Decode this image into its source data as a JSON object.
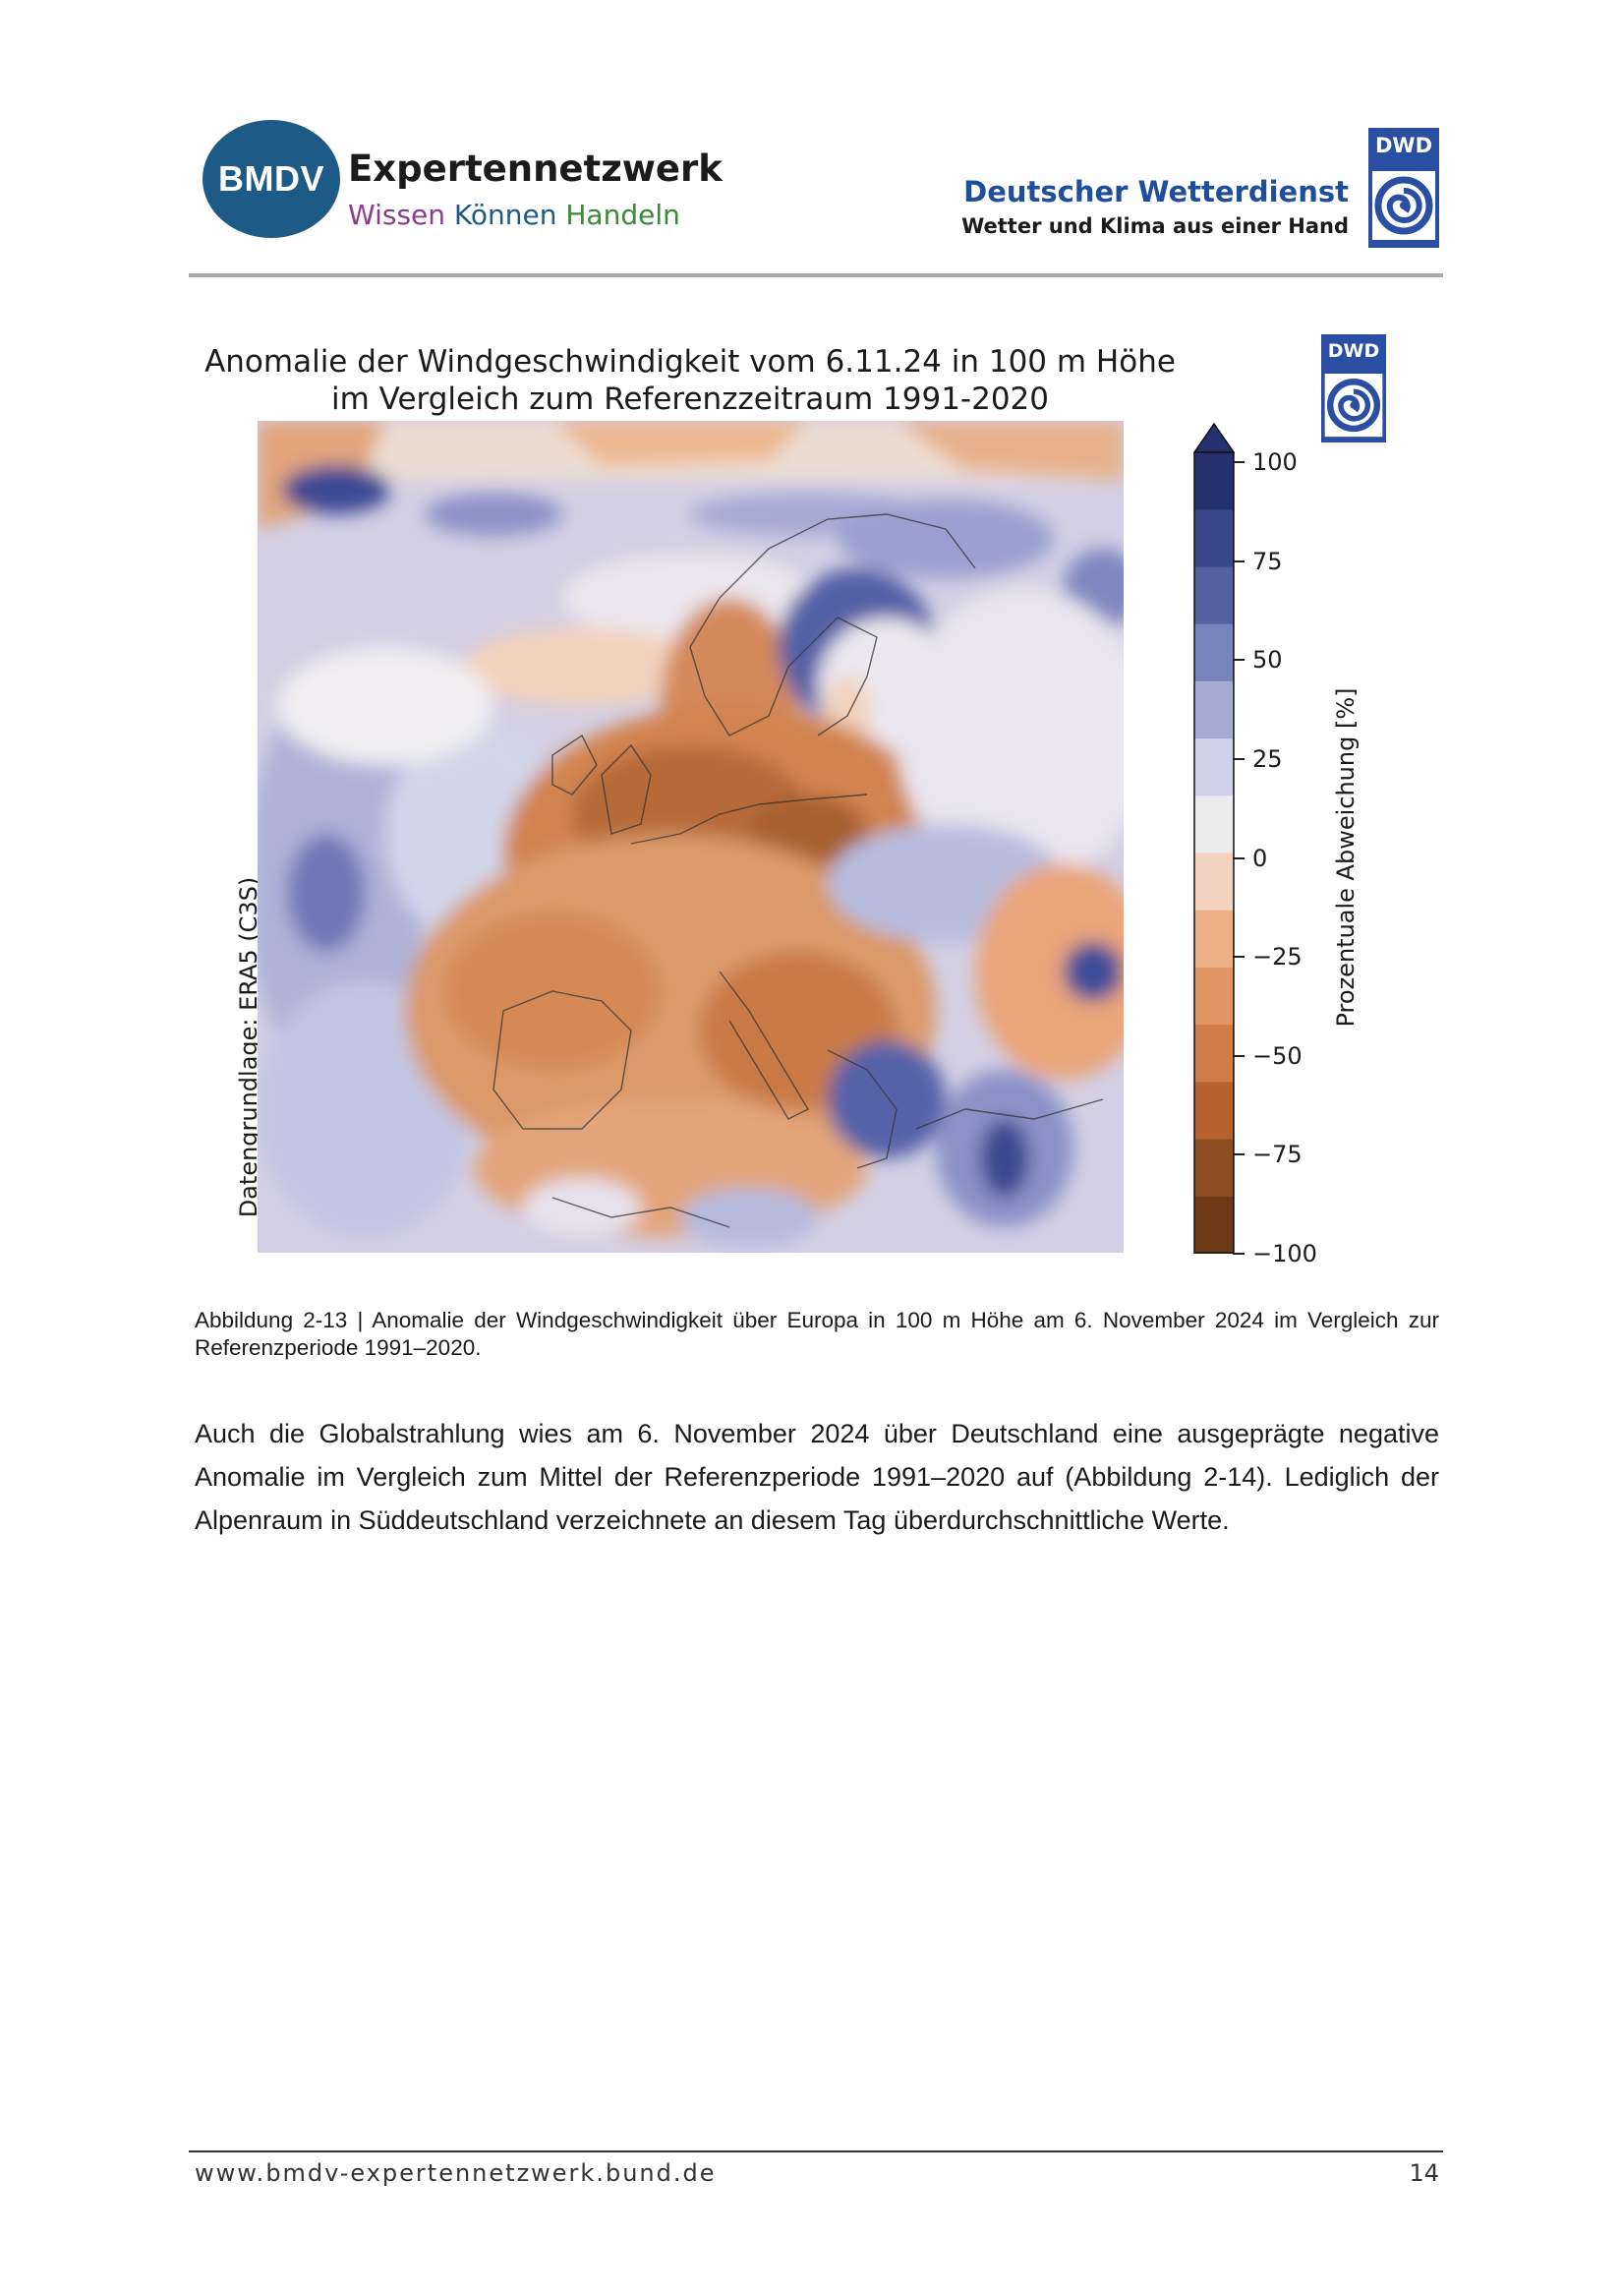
{
  "header": {
    "bmdv_logo": "BMDV",
    "bmdv_title": "Expertennetzwerk",
    "bmdv_tagline": [
      "Wissen",
      "Können",
      "Handeln"
    ],
    "dwd_name": "Deutscher Wetterdienst",
    "dwd_slogan": "Wetter und Klima aus einer Hand",
    "dwd_logo": "DWD"
  },
  "figure": {
    "title_line1": "Anomalie der Windgeschwindigkeit vom 6.11.24 in 100 m Höhe",
    "title_line2": "im Vergleich zum Referenzzeitraum 1991-2020",
    "source_label": "Datengrundlage: ERA5 (C3S)",
    "colorbar_label": "Prozentuale Abweichung [%]",
    "colorbar_ticks": [
      "100",
      "75",
      "50",
      "25",
      "0",
      "−25",
      "−50",
      "−75",
      "−100"
    ],
    "colorbar_colors": [
      "#25306f",
      "#39478a",
      "#5561a3",
      "#7a84bc",
      "#a5abd3",
      "#cdd0e6",
      "#ececed",
      "#f3d3bf",
      "#eeb086",
      "#e09363",
      "#cf7d46",
      "#b5622e",
      "#8f4d22",
      "#6e3a16"
    ],
    "dwd_logo": "DWD"
  },
  "caption": "Abbildung 2-13 | Anomalie der Windgeschwindigkeit über Europa in 100 m Höhe am 6. November 2024 im Vergleich zur Referenzperiode 1991–2020.",
  "body": "Auch die Globalstrahlung wies am 6. November 2024 über Deutschland eine ausgeprägte negative Anomalie im Vergleich zum Mittel der Referenzperiode 1991–2020 auf (Abbildung 2-14). Lediglich der Alpenraum in Süddeutschland verzeichnete an diesem Tag überdurchschnittliche Werte.",
  "footer": {
    "url": "www.bmdv-expertennetzwerk.bund.de",
    "page": "14"
  }
}
